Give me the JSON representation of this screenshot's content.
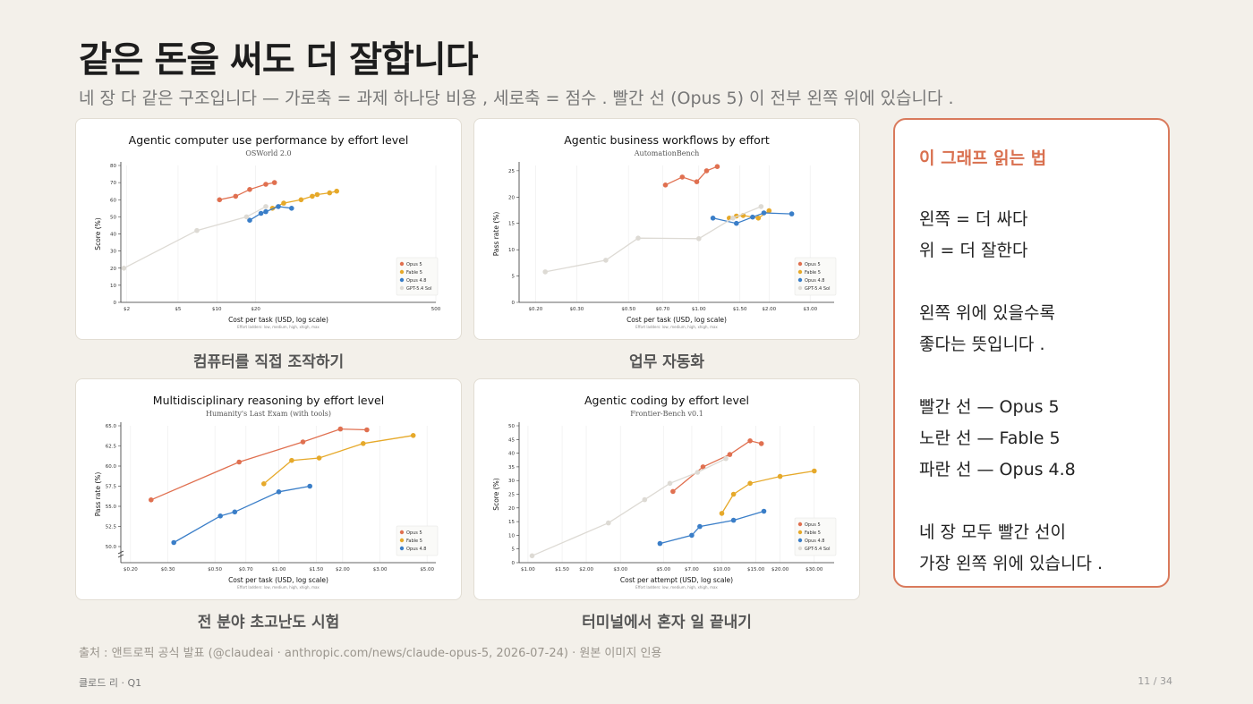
{
  "slide": {
    "title": "같은 돈을 써도 더 잘합니다",
    "subtitle": "네 장 다 같은 구조입니다 — 가로축  =  과제 하나당 비용 ,  세로축  =  점수 .  빨간 선 (Opus 5) 이 전부 왼쪽 위에 있습니다 .",
    "source": "출처 :  앤트로픽 공식 발표  (@claudeai · anthropic.com/news/claude-opus-5, 2026-07-24) ·  원본 이미지 인용",
    "footer_left": "클로드 리  · Q1",
    "page_number": "11 / 34"
  },
  "sidebar": {
    "title": "이 그래프 읽는 법",
    "lines": [
      "왼쪽  =  더 싸다",
      "위  =  더 잘한다",
      "",
      "왼쪽 위에 있을수록",
      "좋다는 뜻입니다 .",
      "",
      "빨간 선 —  Opus 5",
      "노란 선 —  Fable 5",
      "파란 선 —  Opus 4.8",
      "",
      "네 장 모두 빨간 선이",
      "가장 왼쪽 위에 있습니다 ."
    ]
  },
  "colors": {
    "opus5": "#e07050",
    "fable5": "#e6a92a",
    "opus48": "#3a7ec8",
    "gpt": "#dddad4",
    "accent": "#d97a5c"
  },
  "chart_data": [
    {
      "type": "line",
      "caption": "컴퓨터를 직접 조작하기",
      "title": "Agentic computer use performance by effort level",
      "subtitle": "OSWorld 2.0",
      "xlabel": "Cost per task (USD, log scale)",
      "ylabel": "Score (%)",
      "note": "Effort ladders: low, medium, high, xhigh, max",
      "x_scale": "log",
      "xlim": [
        1.8,
        500
      ],
      "ylim": [
        0,
        80
      ],
      "x_ticks": [
        2,
        5,
        10,
        20,
        500
      ],
      "x_tick_labels": [
        "$2",
        "$5",
        "$10",
        "$20",
        "500"
      ],
      "y_ticks": [
        0,
        10,
        20,
        30,
        40,
        50,
        60,
        70,
        80
      ],
      "y_tick_labels": [
        "0",
        "10",
        "20",
        "30",
        "40",
        "50",
        "60",
        "70",
        "80"
      ],
      "legend_position": "bottom-right",
      "series": [
        {
          "name": "Opus 5",
          "color_key": "opus5",
          "x": [
            10.5,
            14,
            18,
            24,
            28
          ],
          "y": [
            60,
            62,
            66,
            69,
            70
          ]
        },
        {
          "name": "Fable 5",
          "color_key": "fable5",
          "x": [
            27,
            33,
            45,
            55,
            60,
            75,
            85
          ],
          "y": [
            55,
            58,
            60,
            62,
            63,
            64,
            65
          ]
        },
        {
          "name": "Opus 4.8",
          "color_key": "opus48",
          "x": [
            18,
            22,
            24,
            30,
            38
          ],
          "y": [
            48,
            52,
            53,
            56,
            55
          ]
        },
        {
          "name": "GPT-5.4 Sol",
          "color_key": "gpt",
          "x": [
            1.9,
            7,
            17,
            24
          ],
          "y": [
            20,
            42,
            50,
            56
          ]
        }
      ]
    },
    {
      "type": "line",
      "caption": "업무 자동화",
      "title": "Agentic business workflows by effort",
      "subtitle": "AutomationBench",
      "xlabel": "Cost per task (USD, log scale)",
      "ylabel": "Pass rate (%)",
      "note": "Effort ladders: low, medium, high, xhigh, max",
      "x_scale": "log",
      "xlim": [
        0.17,
        3.8
      ],
      "ylim": [
        0,
        26
      ],
      "x_ticks": [
        0.2,
        0.3,
        0.5,
        0.7,
        1.0,
        1.5,
        2.0,
        3.0
      ],
      "x_tick_labels": [
        "$0.20",
        "$0.30",
        "$0.50",
        "$0.70",
        "$1.00",
        "$1.50",
        "$2.00",
        "$3.00"
      ],
      "y_ticks": [
        0,
        5,
        10,
        15,
        20,
        25
      ],
      "y_tick_labels": [
        "0",
        "5",
        "10",
        "15",
        "20",
        "25"
      ],
      "legend_position": "bottom-right",
      "series": [
        {
          "name": "Opus 5",
          "color_key": "opus5",
          "x": [
            0.72,
            0.85,
            0.98,
            1.08,
            1.2
          ],
          "y": [
            22.3,
            23.8,
            22.9,
            25,
            25.8
          ]
        },
        {
          "name": "Fable 5",
          "color_key": "fable5",
          "x": [
            1.35,
            1.45,
            1.55,
            1.8,
            2.0
          ],
          "y": [
            16,
            16.4,
            16.5,
            16,
            17.4
          ]
        },
        {
          "name": "Opus 4.8",
          "color_key": "opus48",
          "x": [
            1.15,
            1.45,
            1.7,
            1.9,
            2.5
          ],
          "y": [
            16,
            15,
            16.2,
            17,
            16.8
          ]
        },
        {
          "name": "GPT-5.4 Sol",
          "color_key": "gpt",
          "x": [
            0.22,
            0.4,
            0.55,
            1.0,
            1.4,
            1.85
          ],
          "y": [
            5.8,
            8,
            12.2,
            12.1,
            16,
            18.2
          ]
        }
      ]
    },
    {
      "type": "line",
      "caption": "전 분야 초고난도 시험",
      "title": "Multidisciplinary reasoning by effort level",
      "subtitle": "Humanity's Last Exam (with tools)",
      "xlabel": "Cost per task (USD, log scale)",
      "ylabel": "Pass rate (%)",
      "note": "Effort ladders: low, medium, high, xhigh, max",
      "x_scale": "log",
      "xlim": [
        0.18,
        5.5
      ],
      "ylim": [
        48,
        65
      ],
      "y_axis_break": true,
      "x_ticks": [
        0.2,
        0.3,
        0.5,
        0.7,
        1.0,
        1.5,
        2.0,
        3.0,
        5.0
      ],
      "x_tick_labels": [
        "$0.20",
        "$0.30",
        "$0.50",
        "$0.70",
        "$1.00",
        "$1.50",
        "$2.00",
        "$3.00",
        "$5.00"
      ],
      "y_ticks": [
        50,
        52.5,
        55,
        57.5,
        60,
        62.5,
        65
      ],
      "y_tick_labels": [
        "50.0",
        "52.5",
        "55.0",
        "57.5",
        "60.0",
        "62.5",
        "65.0"
      ],
      "legend_position": "bottom-right",
      "series": [
        {
          "name": "Opus 5",
          "color_key": "opus5",
          "x": [
            0.25,
            0.65,
            1.3,
            1.95,
            2.6
          ],
          "y": [
            55.8,
            60.5,
            63,
            64.6,
            64.5
          ]
        },
        {
          "name": "Fable 5",
          "color_key": "fable5",
          "x": [
            0.85,
            1.15,
            1.55,
            2.5,
            4.3
          ],
          "y": [
            57.8,
            60.7,
            61,
            62.8,
            63.8
          ]
        },
        {
          "name": "Opus 4.8",
          "color_key": "opus48",
          "x": [
            0.32,
            0.53,
            0.62,
            1.0,
            1.4
          ],
          "y": [
            50.5,
            53.8,
            54.3,
            56.8,
            57.5
          ]
        }
      ]
    },
    {
      "type": "line",
      "caption": "터미널에서 혼자 일 끝내기",
      "title": "Agentic coding by effort level",
      "subtitle": "Frontier-Bench v0.1",
      "xlabel": "Cost per attempt (USD, log scale)",
      "ylabel": "Score (%)",
      "note": "Effort ladders: low, medium, high, xhigh, max",
      "x_scale": "log",
      "xlim": [
        0.9,
        38
      ],
      "ylim": [
        0,
        50
      ],
      "x_ticks": [
        1,
        1.5,
        2,
        3,
        5,
        7,
        10,
        15,
        20,
        30
      ],
      "x_tick_labels": [
        "$1.00",
        "$1.50",
        "$2.00",
        "$3.00",
        "$5.00",
        "$7.00",
        "$10.00",
        "$15.00",
        "$20.00",
        "$30.00"
      ],
      "y_ticks": [
        0,
        5,
        10,
        15,
        20,
        25,
        30,
        35,
        40,
        45,
        50
      ],
      "y_tick_labels": [
        "0",
        "5",
        "10",
        "15",
        "20",
        "25",
        "30",
        "35",
        "40",
        "45",
        "50"
      ],
      "legend_position": "bottom-right",
      "series": [
        {
          "name": "Opus 5",
          "color_key": "opus5",
          "x": [
            5.6,
            8,
            11,
            14,
            16
          ],
          "y": [
            26,
            35,
            39.5,
            44.5,
            43.5
          ]
        },
        {
          "name": "Fable 5",
          "color_key": "fable5",
          "x": [
            10,
            11.5,
            14,
            20,
            30
          ],
          "y": [
            18,
            25,
            29,
            31.5,
            33.5
          ]
        },
        {
          "name": "Opus 4.8",
          "color_key": "opus48",
          "x": [
            4.8,
            7,
            7.7,
            11.5,
            16.5
          ],
          "y": [
            7,
            10,
            13.2,
            15.5,
            18.8
          ]
        },
        {
          "name": "GPT-5.4 Sol",
          "color_key": "gpt",
          "x": [
            1.05,
            2.6,
            4,
            5.4,
            7.5,
            10.5
          ],
          "y": [
            2.5,
            14.5,
            23,
            29,
            33,
            38
          ]
        }
      ]
    }
  ]
}
